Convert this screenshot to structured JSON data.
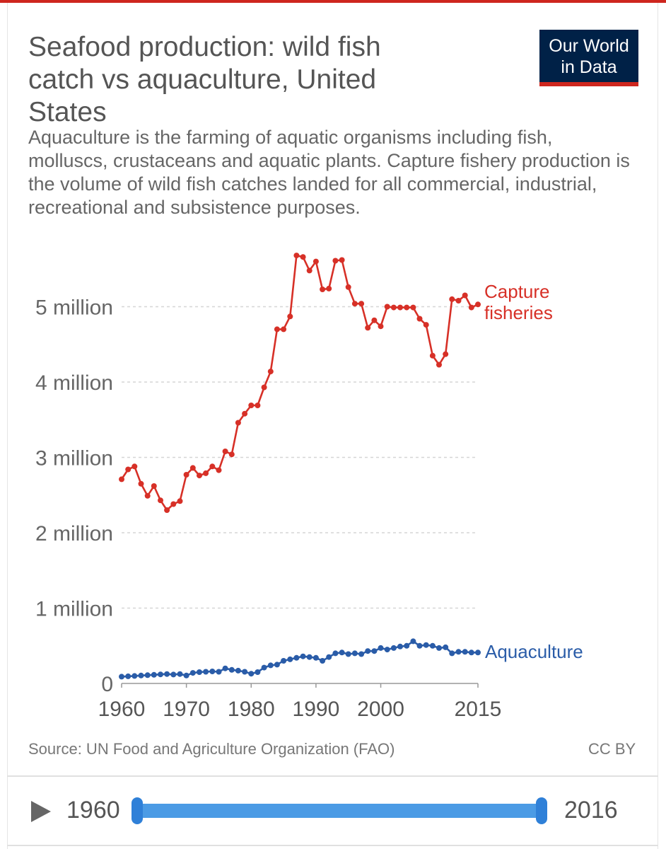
{
  "header": {
    "title": "Seafood production: wild fish catch vs aquaculture, United States",
    "subtitle": "Aquaculture is the farming of aquatic organisms including fish, molluscs, crustaceans and aquatic plants. Capture fishery production is the volume of wild fish catches landed for all commercial, industrial, recreational and subsistence purposes.",
    "logo_line1": "Our World",
    "logo_line2": "in Data"
  },
  "colors": {
    "accent_red": "#ce261e",
    "logo_navy": "#002147",
    "capture": "#d73027",
    "aquaculture": "#2a5ca8",
    "slider": "#4b9be5"
  },
  "chart_data": {
    "type": "line",
    "x": [
      1960,
      1961,
      1962,
      1963,
      1964,
      1965,
      1966,
      1967,
      1968,
      1969,
      1970,
      1971,
      1972,
      1973,
      1974,
      1975,
      1976,
      1977,
      1978,
      1979,
      1980,
      1981,
      1982,
      1983,
      1984,
      1985,
      1986,
      1987,
      1988,
      1989,
      1990,
      1991,
      1992,
      1993,
      1994,
      1995,
      1996,
      1997,
      1998,
      1999,
      2000,
      2001,
      2002,
      2003,
      2004,
      2005,
      2006,
      2007,
      2008,
      2009,
      2010,
      2011,
      2012,
      2013,
      2014,
      2015
    ],
    "series": [
      {
        "name": "Capture fisheries",
        "values": [
          2710000,
          2840000,
          2880000,
          2650000,
          2490000,
          2620000,
          2430000,
          2300000,
          2380000,
          2420000,
          2770000,
          2860000,
          2760000,
          2790000,
          2880000,
          2830000,
          3080000,
          3040000,
          3460000,
          3580000,
          3690000,
          3690000,
          3930000,
          4140000,
          4700000,
          4700000,
          4870000,
          5680000,
          5660000,
          5480000,
          5600000,
          5230000,
          5240000,
          5610000,
          5620000,
          5260000,
          5040000,
          5040000,
          4720000,
          4820000,
          4740000,
          5000000,
          4990000,
          4990000,
          4990000,
          4990000,
          4840000,
          4760000,
          4350000,
          4230000,
          4370000,
          5100000,
          5080000,
          5150000,
          4990000,
          5030000
        ]
      },
      {
        "name": "Aquaculture",
        "values": [
          90000,
          95000,
          100000,
          105000,
          110000,
          115000,
          120000,
          125000,
          118000,
          125000,
          105000,
          140000,
          150000,
          155000,
          160000,
          155000,
          200000,
          180000,
          170000,
          155000,
          130000,
          150000,
          210000,
          240000,
          250000,
          300000,
          320000,
          340000,
          360000,
          350000,
          340000,
          300000,
          350000,
          400000,
          410000,
          390000,
          400000,
          390000,
          430000,
          430000,
          470000,
          450000,
          470000,
          490000,
          500000,
          560000,
          500000,
          510000,
          500000,
          470000,
          480000,
          400000,
          420000,
          420000,
          410000,
          410000
        ]
      }
    ],
    "y_ticks": [
      {
        "value": 0,
        "label": "0"
      },
      {
        "value": 1000000,
        "label": "1 million"
      },
      {
        "value": 2000000,
        "label": "2 million"
      },
      {
        "value": 3000000,
        "label": "3 million"
      },
      {
        "value": 4000000,
        "label": "4 million"
      },
      {
        "value": 5000000,
        "label": "5 million"
      }
    ],
    "x_ticks": [
      {
        "value": 1960,
        "label": "1960"
      },
      {
        "value": 1970,
        "label": "1970"
      },
      {
        "value": 1980,
        "label": "1980"
      },
      {
        "value": 1990,
        "label": "1990"
      },
      {
        "value": 2000,
        "label": "2000"
      },
      {
        "value": 2015,
        "label": "2015"
      }
    ],
    "series_labels": {
      "capture_line1": "Capture",
      "capture_line2": "fisheries",
      "aquaculture": "Aquaculture"
    },
    "xlim": [
      1960,
      2015
    ],
    "ylim": [
      0,
      5700000
    ],
    "grid": "horizontal dashed",
    "legend": "inline labels at line ends"
  },
  "footer": {
    "source": "Source: UN Food and Agriculture Organization (FAO)",
    "license": "CC BY"
  },
  "timeline": {
    "start_label": "1960",
    "end_label": "2016"
  }
}
